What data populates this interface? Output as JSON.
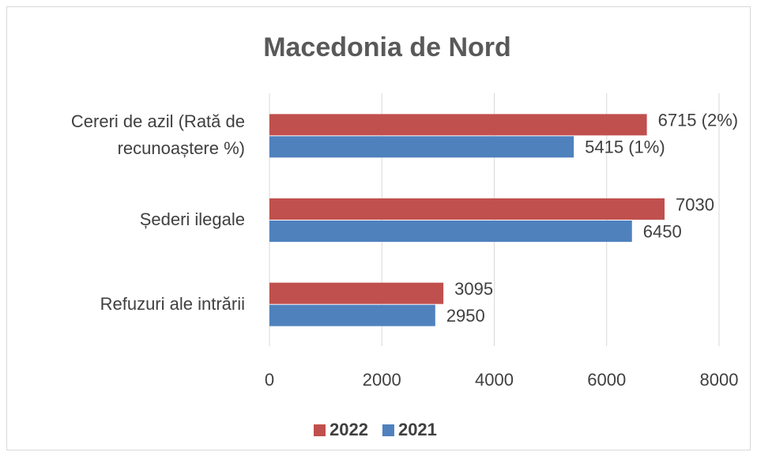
{
  "chart_data": {
    "type": "barh",
    "title": "Macedonia de Nord",
    "categories": [
      "Cereri de azil (Rată de recunoaștere %)",
      "Șederi ilegale",
      "Refuzuri ale intrării"
    ],
    "series": [
      {
        "name": "2022",
        "color": "#c0504d",
        "values": [
          6715,
          7030,
          3095
        ],
        "value_labels": [
          "6715 (2%)",
          "7030",
          "3095"
        ]
      },
      {
        "name": "2021",
        "color": "#4f81bd",
        "values": [
          5415,
          6450,
          2950
        ],
        "value_labels": [
          "5415 (1%)",
          "6450",
          "2950"
        ]
      }
    ],
    "xlim": [
      0,
      8000
    ],
    "xticks": [
      0,
      2000,
      4000,
      6000,
      8000
    ],
    "grid": true,
    "legend": "bottom"
  }
}
